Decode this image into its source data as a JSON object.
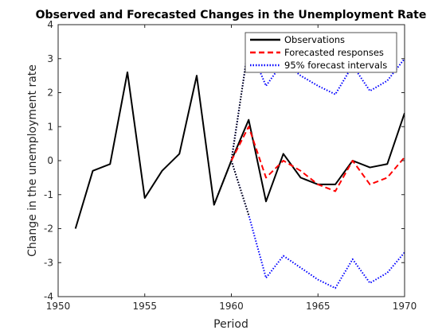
{
  "chart_data": {
    "type": "line",
    "title": "Observed and Forecasted Changes in the Unemployment Rate",
    "xlabel": "Period",
    "ylabel": "Change in the unemployment rate",
    "xlim": [
      1950,
      1970
    ],
    "ylim": [
      -4,
      4
    ],
    "xticks": [
      "1950",
      "1955",
      "1960",
      "1965",
      "1970"
    ],
    "yticks": [
      "-4",
      "-3",
      "-2",
      "-1",
      "0",
      "1",
      "2",
      "3",
      "4"
    ],
    "grid": false,
    "legend_position": "top-right",
    "legend": [
      "Observations",
      "Forecasted responses",
      "95% forecast intervals"
    ],
    "series": [
      {
        "name": "Observations",
        "color": "#000000",
        "style": "solid",
        "x": [
          1951,
          1952,
          1953,
          1954,
          1955,
          1956,
          1957,
          1958,
          1959,
          1960,
          1961,
          1962,
          1963,
          1964,
          1965,
          1966,
          1967,
          1968,
          1969,
          1970
        ],
        "y": [
          -2.0,
          -0.3,
          -0.1,
          2.6,
          -1.1,
          -0.3,
          0.2,
          2.5,
          -1.3,
          0.0,
          1.2,
          -1.2,
          0.2,
          -0.5,
          -0.7,
          -0.7,
          0.0,
          -0.2,
          -0.1,
          1.4
        ]
      },
      {
        "name": "Forecasted responses",
        "color": "#ff0000",
        "style": "dashed",
        "x": [
          1960,
          1961,
          1962,
          1963,
          1964,
          1965,
          1966,
          1967,
          1968,
          1969,
          1970
        ],
        "y": [
          0.0,
          1.0,
          -0.5,
          0.0,
          -0.3,
          -0.7,
          -0.9,
          0.0,
          -0.7,
          -0.5,
          0.1
        ]
      },
      {
        "name": "95% forecast intervals",
        "color": "#0000ff",
        "style": "dotted",
        "x": [
          1960,
          1961,
          1962,
          1963,
          1964,
          1965,
          1966,
          1967,
          1968,
          1969,
          1970
        ],
        "y": [
          0.0,
          3.4,
          2.2,
          2.9,
          2.5,
          2.2,
          1.95,
          2.8,
          2.05,
          2.35,
          3.0
        ]
      },
      {
        "name": "",
        "color": "#0000ff",
        "style": "dotted",
        "x": [
          1960,
          1961,
          1962,
          1963,
          1964,
          1965,
          1966,
          1967,
          1968,
          1969,
          1970
        ],
        "y": [
          0.0,
          -1.6,
          -3.45,
          -2.8,
          -3.15,
          -3.5,
          -3.75,
          -2.9,
          -3.6,
          -3.3,
          -2.7
        ]
      },
      {
        "name": "",
        "color": "#000000",
        "style": "dotted",
        "x": [
          1959,
          1960,
          1961
        ],
        "y": [
          -1.3,
          0.0,
          3.4
        ]
      },
      {
        "name": "",
        "color": "#000000",
        "style": "dotted",
        "x": [
          1960,
          1961
        ],
        "y": [
          0.0,
          -1.6
        ]
      }
    ]
  }
}
